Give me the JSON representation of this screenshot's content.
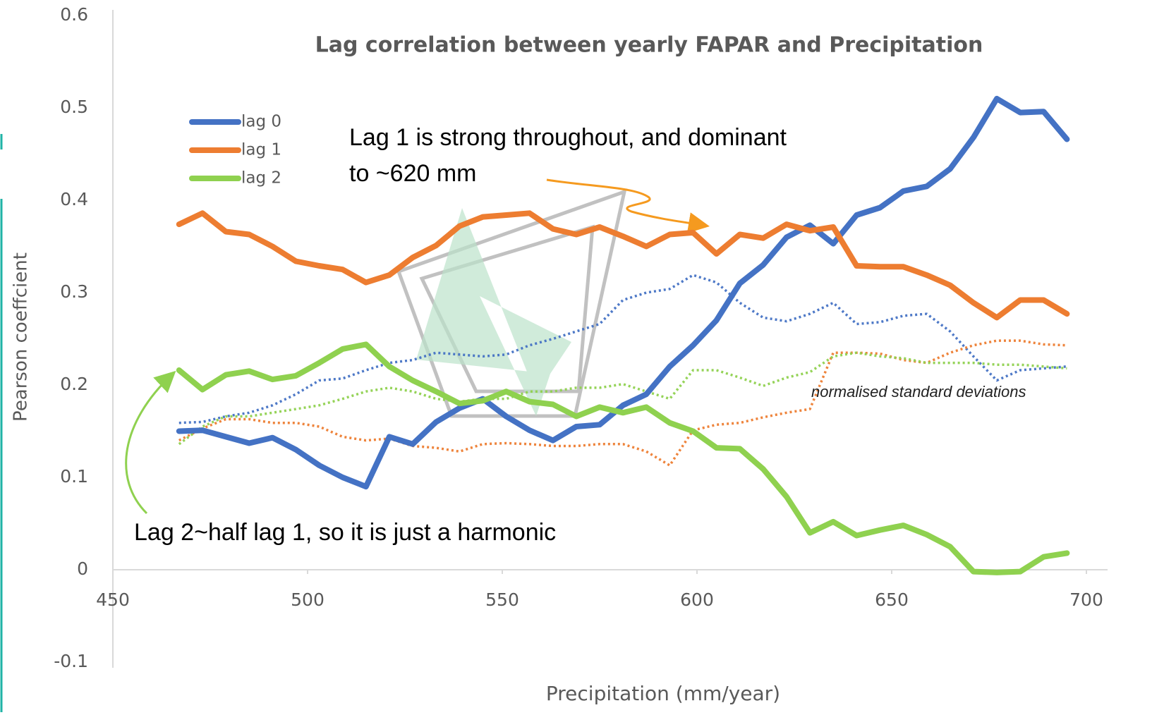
{
  "chart_data": {
    "type": "line",
    "title": "Lag correlation between yearly FAPAR and Precipitation",
    "x_label": "Precipitation (mm/year)",
    "y_label": "Pearson coeffcient",
    "x": [
      467,
      473,
      479,
      485,
      491,
      497,
      503,
      509,
      515,
      521,
      527,
      533,
      539,
      545,
      551,
      557,
      563,
      569,
      575,
      581,
      587,
      593,
      599,
      605,
      611,
      617,
      623,
      629,
      635,
      641,
      647,
      653,
      659,
      665,
      671,
      677,
      683,
      689,
      695
    ],
    "series": [
      {
        "name": "lag 0",
        "color": "#4472c4",
        "style": "solid",
        "values": [
          0.15,
          0.151,
          0.144,
          0.137,
          0.143,
          0.13,
          0.113,
          0.1,
          0.09,
          0.144,
          0.136,
          0.16,
          0.175,
          0.185,
          0.166,
          0.151,
          0.14,
          0.155,
          0.157,
          0.178,
          0.19,
          0.22,
          0.243,
          0.27,
          0.31,
          0.33,
          0.36,
          0.373,
          0.353,
          0.384,
          0.392,
          0.41,
          0.415,
          0.434,
          0.468,
          0.51,
          0.495,
          0.496,
          0.466
        ]
      },
      {
        "name": "lag 1",
        "color": "#ed7d31",
        "style": "solid",
        "values": [
          0.374,
          0.386,
          0.366,
          0.363,
          0.35,
          0.334,
          0.329,
          0.325,
          0.311,
          0.319,
          0.338,
          0.351,
          0.372,
          0.382,
          0.384,
          0.386,
          0.369,
          0.363,
          0.371,
          0.361,
          0.35,
          0.363,
          0.365,
          0.342,
          0.363,
          0.359,
          0.374,
          0.367,
          0.371,
          0.329,
          0.328,
          0.328,
          0.319,
          0.308,
          0.289,
          0.273,
          0.292,
          0.292,
          0.277
        ]
      },
      {
        "name": "lag 2",
        "color": "#8fd14f",
        "style": "solid",
        "values": [
          0.216,
          0.195,
          0.211,
          0.215,
          0.206,
          0.21,
          0.224,
          0.239,
          0.244,
          0.22,
          0.205,
          0.193,
          0.18,
          0.183,
          0.193,
          0.182,
          0.179,
          0.166,
          0.176,
          0.17,
          0.176,
          0.159,
          0.15,
          0.132,
          0.131,
          0.109,
          0.079,
          0.04,
          0.052,
          0.037,
          0.043,
          0.048,
          0.038,
          0.025,
          -0.002,
          -0.003,
          -0.002,
          0.014,
          0.018
        ]
      },
      {
        "color": "#4472c4",
        "style": "dotted",
        "values": [
          0.159,
          0.16,
          0.166,
          0.17,
          0.178,
          0.19,
          0.205,
          0.207,
          0.216,
          0.224,
          0.227,
          0.235,
          0.233,
          0.231,
          0.233,
          0.243,
          0.25,
          0.258,
          0.266,
          0.292,
          0.3,
          0.304,
          0.319,
          0.311,
          0.289,
          0.273,
          0.269,
          0.277,
          0.289,
          0.266,
          0.268,
          0.275,
          0.277,
          0.258,
          0.231,
          0.205,
          0.216,
          0.218,
          0.22
        ]
      },
      {
        "color": "#ed7d31",
        "style": "dotted",
        "values": [
          0.14,
          0.153,
          0.163,
          0.163,
          0.159,
          0.159,
          0.155,
          0.144,
          0.14,
          0.142,
          0.134,
          0.132,
          0.128,
          0.136,
          0.137,
          0.136,
          0.134,
          0.134,
          0.136,
          0.136,
          0.128,
          0.113,
          0.151,
          0.157,
          0.159,
          0.165,
          0.17,
          0.174,
          0.235,
          0.235,
          0.234,
          0.227,
          0.224,
          0.235,
          0.243,
          0.248,
          0.248,
          0.244,
          0.243
        ]
      },
      {
        "color": "#8fd14f",
        "style": "dotted",
        "values": [
          0.136,
          0.155,
          0.166,
          0.166,
          0.17,
          0.174,
          0.178,
          0.185,
          0.193,
          0.197,
          0.193,
          0.185,
          0.182,
          0.185,
          0.185,
          0.193,
          0.193,
          0.197,
          0.197,
          0.201,
          0.193,
          0.185,
          0.216,
          0.216,
          0.208,
          0.199,
          0.208,
          0.214,
          0.231,
          0.235,
          0.231,
          0.229,
          0.224,
          0.224,
          0.224,
          0.222,
          0.222,
          0.22,
          0.218
        ]
      }
    ],
    "xlim": [
      450,
      700
    ],
    "xticks": [
      450,
      500,
      550,
      600,
      650,
      700
    ],
    "ylim": [
      -0.1,
      0.6
    ],
    "yticks": [
      -0.1,
      0,
      0.1,
      0.2,
      0.3,
      0.4,
      0.5,
      0.6
    ],
    "grid": false,
    "legend": "upper left",
    "annotations": [
      "Lag 1 is strong throughout, and dominant",
      "to ~620 mm",
      "Lag 2~half lag 1, so it is just a harmonic",
      "normalised standard deviations"
    ]
  }
}
